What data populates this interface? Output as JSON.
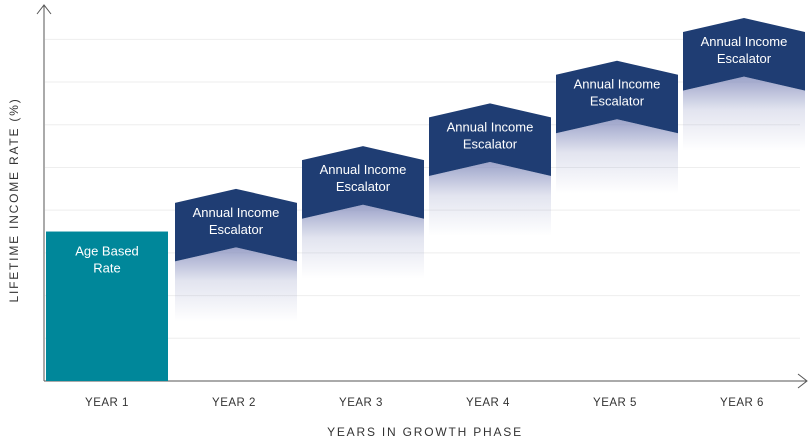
{
  "chart_data": {
    "type": "bar",
    "ylabel": "LIFETIME INCOME RATE (%)",
    "xlabel": "YEARS IN GROWTH PHASE",
    "categories": [
      "YEAR 1",
      "YEAR 2",
      "YEAR 3",
      "YEAR 4",
      "YEAR 5",
      "YEAR 6"
    ],
    "base": {
      "label_line1": "Age Based",
      "label_line2": "Rate",
      "value": 3.5
    },
    "escalators": [
      {
        "category": "YEAR 2",
        "line1": "Annual Income",
        "line2": "Escalator",
        "bottom": 2.8,
        "top": 4.5
      },
      {
        "category": "YEAR 3",
        "line1": "Annual Income",
        "line2": "Escalator",
        "bottom": 3.8,
        "top": 5.5
      },
      {
        "category": "YEAR 4",
        "line1": "Annual Income",
        "line2": "Escalator",
        "bottom": 4.8,
        "top": 6.5
      },
      {
        "category": "YEAR 5",
        "line1": "Annual Income",
        "line2": "Escalator",
        "bottom": 5.8,
        "top": 7.5
      },
      {
        "category": "YEAR 6",
        "line1": "Annual Income",
        "line2": "Escalator",
        "bottom": 6.8,
        "top": 8.5
      }
    ],
    "ylim": [
      0,
      8.5
    ],
    "grid": true,
    "colors": {
      "base": "#00879a",
      "escalator": "#1f3d73",
      "fade": "#8b93c0",
      "axis": "#555555",
      "grid": "#eeeeee",
      "text": "#333333"
    }
  }
}
